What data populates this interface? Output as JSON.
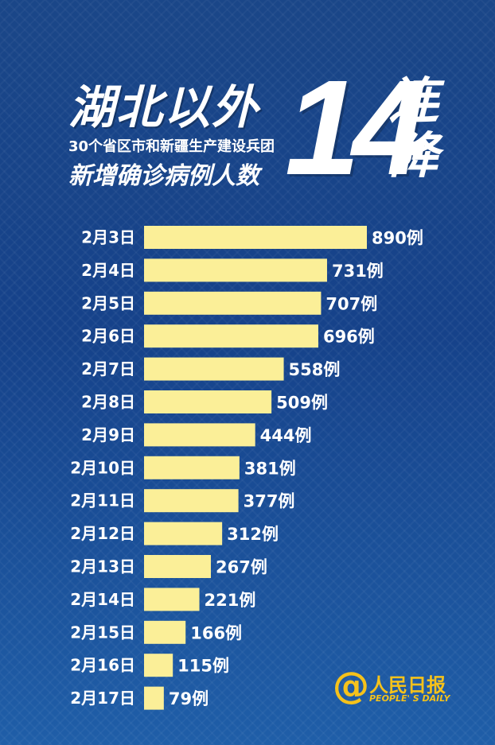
{
  "title": {
    "line1": "湖北以外",
    "line2": "30个省区市和新疆生产建设兵团",
    "line3": "新增确诊病例人数",
    "big_number": "14",
    "side_word": "连降"
  },
  "chart_data": {
    "type": "bar",
    "orientation": "horizontal",
    "categories": [
      "2月3日",
      "2月4日",
      "2月5日",
      "2月6日",
      "2月7日",
      "2月8日",
      "2月9日",
      "2月10日",
      "2月11日",
      "2月12日",
      "2月13日",
      "2月14日",
      "2月15日",
      "2月16日",
      "2月17日"
    ],
    "values": [
      890,
      731,
      707,
      696,
      558,
      509,
      444,
      381,
      377,
      312,
      267,
      221,
      166,
      115,
      79
    ],
    "value_suffix": "例",
    "bar_color": "#fbef98",
    "label_color": "#ffffff"
  },
  "logo": {
    "symbol": "@",
    "name": "人民日报",
    "english": "PEOPLE' S DAILY",
    "color": "#f5c21b"
  }
}
